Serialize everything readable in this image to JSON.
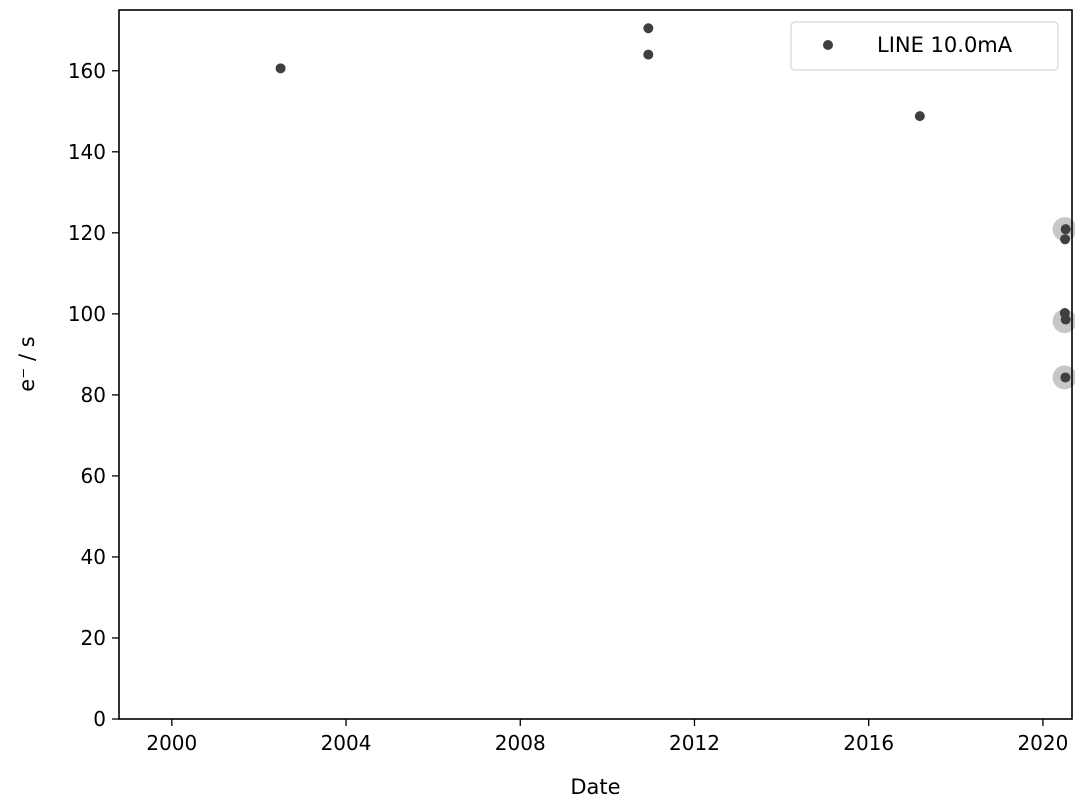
{
  "chart_data": {
    "type": "scatter",
    "title": "",
    "xlabel": "Date",
    "ylabel": "e⁻ / s",
    "xlim": [
      "1998-10-15",
      "2020-09-01"
    ],
    "ylim": [
      0,
      175
    ],
    "x_ticks": [
      "2000",
      "2004",
      "2008",
      "2012",
      "2016",
      "2020"
    ],
    "y_ticks": [
      0,
      20,
      40,
      60,
      80,
      100,
      120,
      140,
      160
    ],
    "grid": false,
    "legend": {
      "position": "top-right"
    },
    "series": [
      {
        "name": "LINE 10.0mA",
        "color": "#3f3f3f",
        "points": [
          {
            "x": "2002-07-01",
            "y": 160.6
          },
          {
            "x": "2010-12-10",
            "y": 170.5
          },
          {
            "x": "2010-12-10",
            "y": 164.0
          },
          {
            "x": "2017-03-05",
            "y": 148.8
          },
          {
            "x": "2020-07-10",
            "y": 120.9
          },
          {
            "x": "2020-07-05",
            "y": 118.4
          },
          {
            "x": "2020-07-03",
            "y": 100.2
          },
          {
            "x": "2020-07-10",
            "y": 98.6
          },
          {
            "x": "2020-07-08",
            "y": 84.3
          }
        ]
      }
    ],
    "highlighted": {
      "color": "#bdbdbd",
      "points": [
        {
          "x": "2020-07-01",
          "y": 120.9
        },
        {
          "x": "2020-07-01",
          "y": 98.2
        },
        {
          "x": "2020-07-01",
          "y": 84.3
        }
      ]
    }
  }
}
